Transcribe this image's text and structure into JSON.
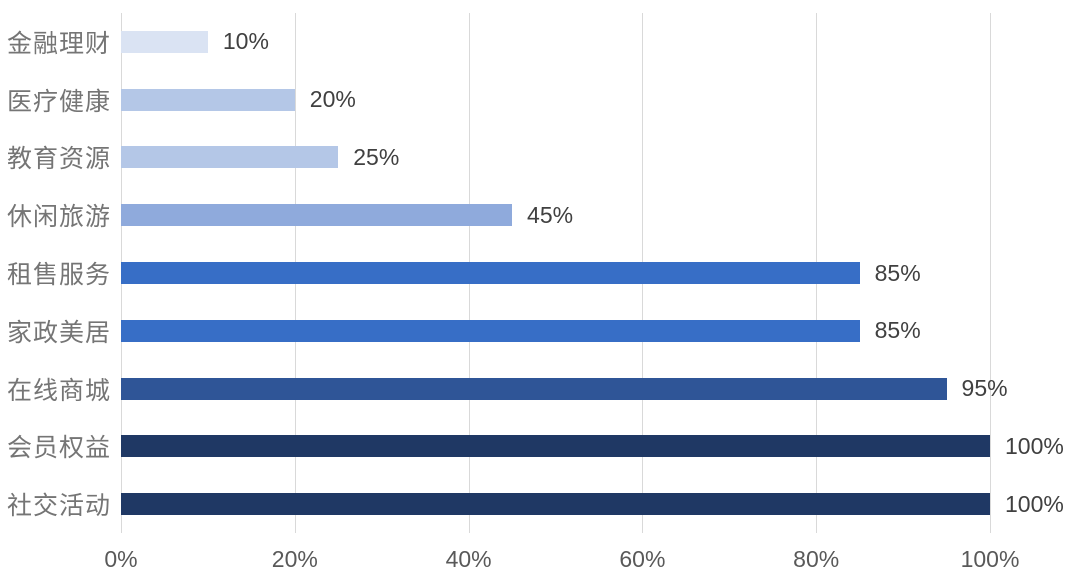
{
  "chart_data": {
    "type": "bar",
    "orientation": "horizontal",
    "title": "",
    "categories": [
      "金融理财",
      "医疗健康",
      "教育资源",
      "休闲旅游",
      "租售服务",
      "家政美居",
      "在线商城",
      "会员权益",
      "社交活动"
    ],
    "values": [
      10,
      20,
      25,
      45,
      85,
      85,
      95,
      100,
      100
    ],
    "value_labels": [
      "10%",
      "20%",
      "25%",
      "45%",
      "85%",
      "85%",
      "95%",
      "100%",
      "100%"
    ],
    "bar_colors": [
      "#dae3f3",
      "#b4c7e7",
      "#b4c7e7",
      "#8faadc",
      "#376ec6",
      "#376ec6",
      "#2f5597",
      "#1f3864",
      "#1f3864"
    ],
    "x_ticks": [
      "0%",
      "20%",
      "40%",
      "60%",
      "80%",
      "100%"
    ],
    "x_tick_values": [
      0,
      20,
      40,
      60,
      80,
      100
    ],
    "xlim": [
      0,
      100
    ],
    "grid": "vertical",
    "legend": "none",
    "colors": {
      "gridline": "#d9d9d9",
      "category_label": "#757575",
      "value_label": "#404040",
      "tick_label": "#595959",
      "background": "#ffffff"
    }
  }
}
